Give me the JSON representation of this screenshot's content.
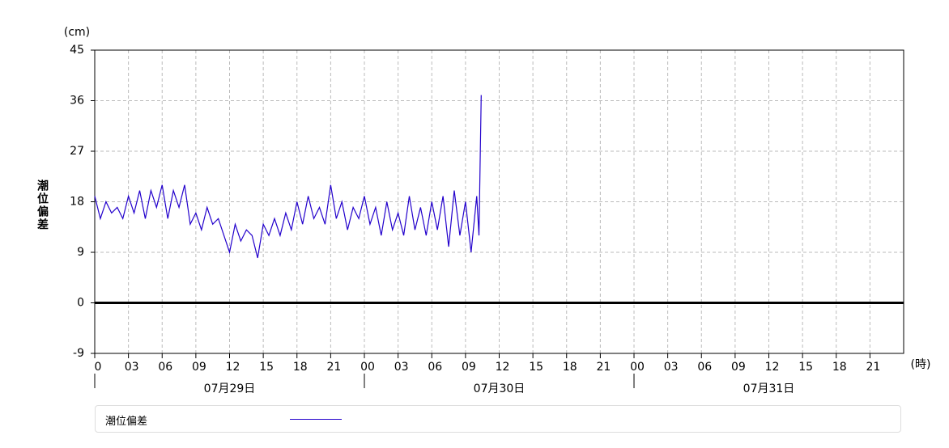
{
  "chart_data": {
    "type": "line",
    "y_unit": "(cm)",
    "x_unit": "(時)",
    "y_label": "潮位偏差",
    "day_labels": [
      "07月29日",
      "07月30日",
      "07月31日"
    ],
    "x": [
      0,
      0.5,
      1,
      1.5,
      2,
      2.5,
      3,
      3.5,
      4,
      4.5,
      5,
      5.5,
      6,
      6.5,
      7,
      7.5,
      8,
      8.5,
      9,
      9.5,
      10,
      10.5,
      11,
      11.5,
      12,
      12.5,
      13,
      13.5,
      14,
      14.5,
      15,
      15.5,
      16,
      16.5,
      17,
      17.5,
      18,
      18.5,
      19,
      19.5,
      20,
      20.5,
      21,
      21.5,
      22,
      22.5,
      23,
      23.5,
      24,
      24.5,
      25,
      25.5,
      26,
      26.5,
      27,
      27.5,
      28,
      28.5,
      29,
      29.5,
      30,
      30.5,
      31,
      31.5,
      32,
      32.5,
      33,
      33.5,
      34,
      34.2,
      34.4
    ],
    "series": [
      {
        "name": "潮位偏差",
        "color": "#2200cc",
        "values": [
          19,
          15,
          18,
          16,
          17,
          15,
          19,
          16,
          20,
          15,
          20,
          17,
          21,
          15,
          20,
          17,
          21,
          14,
          16,
          13,
          17,
          14,
          15,
          12,
          9,
          14,
          11,
          13,
          12,
          8,
          14,
          12,
          15,
          12,
          16,
          13,
          18,
          14,
          19,
          15,
          17,
          14,
          21,
          15,
          18,
          13,
          17,
          15,
          19,
          14,
          17,
          12,
          18,
          13,
          16,
          12,
          19,
          13,
          17,
          12,
          18,
          13,
          19,
          10,
          20,
          12,
          18,
          9,
          19,
          12,
          37
        ]
      }
    ],
    "xlim": [
      0,
      72
    ],
    "xticks": [
      {
        "value": 0,
        "label": "0"
      },
      {
        "value": 3,
        "label": "03"
      },
      {
        "value": 6,
        "label": "06"
      },
      {
        "value": 9,
        "label": "09"
      },
      12,
      15,
      18,
      21,
      {
        "value": 24,
        "label": "00"
      },
      {
        "value": 27,
        "label": "03"
      },
      {
        "value": 30,
        "label": "06"
      },
      {
        "value": 33,
        "label": "09"
      },
      {
        "value": 36,
        "label": "12"
      },
      {
        "value": 39,
        "label": "15"
      },
      {
        "value": 42,
        "label": "18"
      },
      {
        "value": 45,
        "label": "21"
      },
      {
        "value": 48,
        "label": "00"
      },
      {
        "value": 51,
        "label": "03"
      },
      {
        "value": 54,
        "label": "06"
      },
      {
        "value": 57,
        "label": "09"
      },
      {
        "value": 60,
        "label": "12"
      },
      {
        "value": 63,
        "label": "15"
      },
      {
        "value": 66,
        "label": "18"
      },
      {
        "value": 69,
        "label": "21"
      }
    ],
    "ylim": [
      -9,
      45
    ],
    "yticks": [
      -9,
      0,
      9,
      18,
      27,
      36,
      45
    ],
    "grid": true
  }
}
